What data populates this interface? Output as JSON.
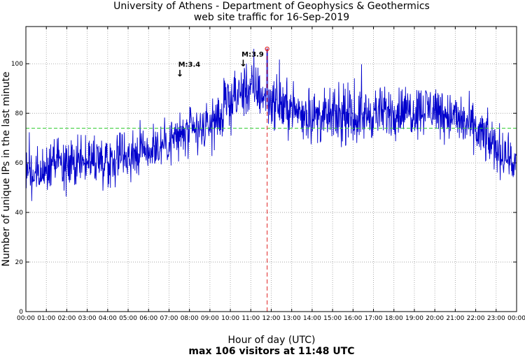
{
  "chart_data": {
    "type": "line",
    "title_line1": "University of Athens - Department of Geophysics & Geothermics",
    "title_line2": "web site traffic for 16-Sep-2019",
    "xlabel": "Hour of day (UTC)",
    "summary": "max 106 visitors at 11:48 UTC",
    "ylabel": "Number of unique IPs in the last minute",
    "xlim": [
      0,
      24
    ],
    "ylim": [
      0,
      115
    ],
    "xticks": [
      "00:00",
      "01:00",
      "02:00",
      "03:00",
      "04:00",
      "05:00",
      "06:00",
      "07:00",
      "08:00",
      "09:00",
      "10:00",
      "11:00",
      "12:00",
      "13:00",
      "14:00",
      "15:00",
      "16:00",
      "17:00",
      "18:00",
      "19:00",
      "20:00",
      "21:00",
      "22:00",
      "23:00",
      "00:00"
    ],
    "yticks": [
      0,
      20,
      40,
      60,
      80,
      100
    ],
    "grid": true,
    "mean_line": 74,
    "max": {
      "hour": 11.8,
      "value": 106
    },
    "series": [
      {
        "name": "visitors",
        "x": [
          0,
          0.5,
          1,
          1.5,
          2,
          2.5,
          3,
          3.5,
          4,
          4.5,
          5,
          5.5,
          6,
          6.5,
          7,
          7.5,
          8,
          8.5,
          9,
          9.5,
          10,
          10.5,
          11,
          11.5,
          12,
          12.5,
          13,
          13.5,
          14,
          14.5,
          15,
          15.5,
          16,
          16.5,
          17,
          17.5,
          18,
          18.5,
          19,
          19.5,
          20,
          20.5,
          21,
          21.5,
          22,
          22.5,
          23,
          23.5,
          24
        ],
        "values": [
          54,
          53,
          57,
          60,
          58,
          60,
          61,
          62,
          60,
          63,
          64,
          65,
          66,
          67,
          69,
          71,
          72,
          73,
          75,
          79,
          84,
          88,
          90,
          88,
          85,
          83,
          82,
          80,
          79,
          78,
          79,
          78,
          78,
          79,
          80,
          80,
          81,
          81,
          81,
          82,
          82,
          80,
          78,
          76,
          73,
          70,
          66,
          63,
          60
        ]
      }
    ],
    "annotations": [
      {
        "label": "M:3.4",
        "arrow": "↓",
        "hour": 7.45,
        "value": 96
      },
      {
        "label": "M:3.9",
        "arrow": "↓",
        "hour": 10.55,
        "value": 100
      }
    ]
  }
}
